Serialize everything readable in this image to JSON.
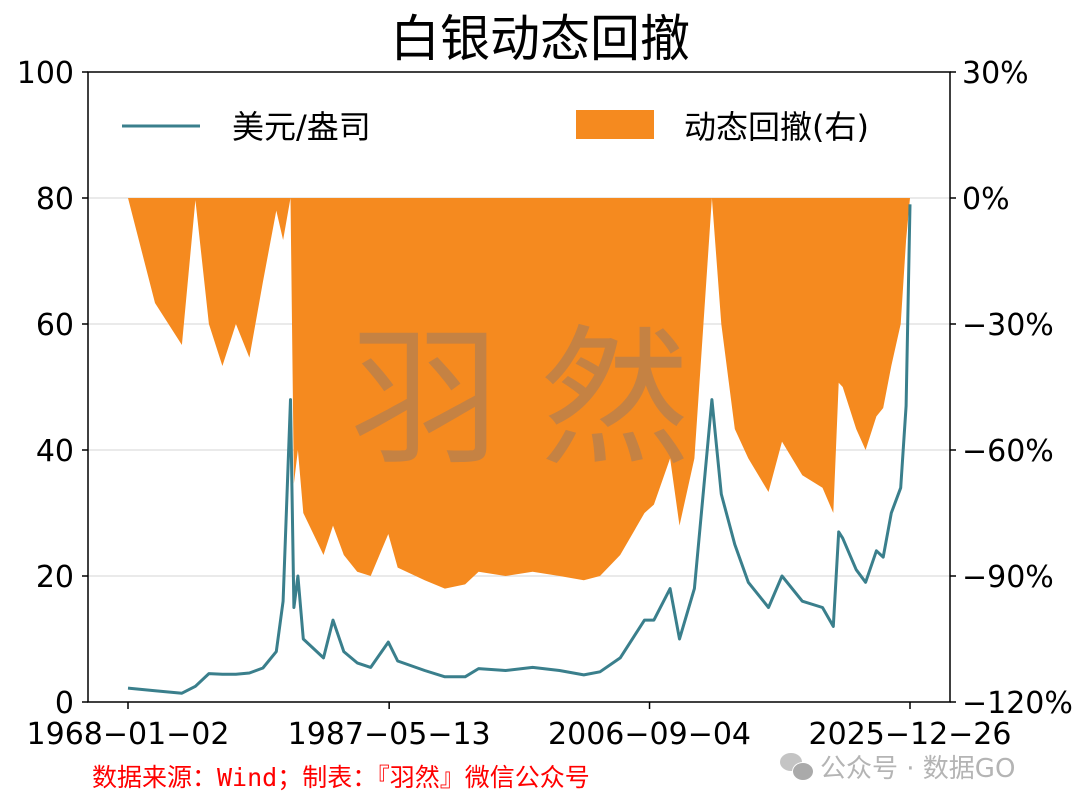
{
  "title": "白银动态回撤",
  "source_note": "数据来源：Wind；制表：『羽然』微信公众号",
  "watermark": {
    "text": "羽然",
    "account": "公众号 · 数据GO"
  },
  "colors": {
    "line": "#3a7f8c",
    "area": "#f58a1f",
    "grid": "#dddddd",
    "source": "#ff0000"
  },
  "legend": [
    {
      "label": "美元/盎司",
      "type": "line",
      "color": "#3a7f8c"
    },
    {
      "label": "动态回撤(右)",
      "type": "area",
      "color": "#f58a1f"
    }
  ],
  "chart_data": {
    "type": "line",
    "title": "白银动态回撤",
    "xlabel": "",
    "ylabel": "美元/盎司",
    "ylabel_right": "动态回撤(右)",
    "x_ticks": [
      "1968-01-02",
      "1987-05-13",
      "2006-09-04",
      "2025-12-26"
    ],
    "y_ticks_left": [
      0,
      20,
      40,
      60,
      80,
      100
    ],
    "y_ticks_right": [
      "-120%",
      "-90%",
      "-60%",
      "-30%",
      "0%",
      "30%"
    ],
    "ylim_left": [
      0,
      100
    ],
    "ylim_right": [
      -120,
      30
    ],
    "grid": true,
    "legend_position": "top",
    "x": [
      1968.0,
      1970.0,
      1972.0,
      1973.0,
      1974.0,
      1975.0,
      1976.0,
      1977.0,
      1978.0,
      1979.0,
      1979.5,
      1980.05,
      1980.3,
      1980.6,
      1981.0,
      1982.5,
      1983.2,
      1984.0,
      1985.0,
      1986.0,
      1987.3,
      1988.0,
      1990.0,
      1991.5,
      1993.0,
      1994.0,
      1996.0,
      1998.0,
      2000.0,
      2001.8,
      2003.0,
      2004.5,
      2006.3,
      2007.0,
      2008.2,
      2008.9,
      2010.0,
      2011.3,
      2012.0,
      2013.0,
      2014.0,
      2015.5,
      2016.5,
      2018.0,
      2019.5,
      2020.3,
      2020.7,
      2021.0,
      2022.0,
      2022.7,
      2023.5,
      2024.0,
      2024.6,
      2025.3,
      2025.7,
      2025.99
    ],
    "series": [
      {
        "name": "美元/盎司",
        "axis": "left",
        "values": [
          2.2,
          1.8,
          1.4,
          2.5,
          4.5,
          4.4,
          4.4,
          4.6,
          5.4,
          8.0,
          16.0,
          48.0,
          15.0,
          20.0,
          10.0,
          7.0,
          13.0,
          8.0,
          6.2,
          5.5,
          9.5,
          6.5,
          5.0,
          4.0,
          4.0,
          5.3,
          5.0,
          5.5,
          5.0,
          4.3,
          4.8,
          7.0,
          13.0,
          13.0,
          18.0,
          10.0,
          18.0,
          48.0,
          33.0,
          25.0,
          19.0,
          15.0,
          20.0,
          16.0,
          15.0,
          12.0,
          27.0,
          26.0,
          21.0,
          19.0,
          24.0,
          23.0,
          30.0,
          34.0,
          47.0,
          79.0
        ]
      },
      {
        "name": "动态回撤(右)",
        "axis": "right",
        "type": "area",
        "values": [
          0,
          -25,
          -35,
          -0.5,
          -30,
          -40,
          -30,
          -38,
          -20,
          -3,
          -10,
          0,
          -68,
          -60,
          -75,
          -85,
          -78,
          -85,
          -89,
          -90,
          -80,
          -88,
          -91,
          -93,
          -92,
          -89,
          -90,
          -89,
          -90,
          -91,
          -90,
          -85,
          -75,
          -73,
          -62,
          -78,
          -62,
          0,
          -30,
          -55,
          -62,
          -70,
          -58,
          -66,
          -69,
          -75,
          -44,
          -45,
          -55,
          -60,
          -52,
          -50,
          -40,
          -30,
          -10,
          0
        ]
      }
    ]
  }
}
